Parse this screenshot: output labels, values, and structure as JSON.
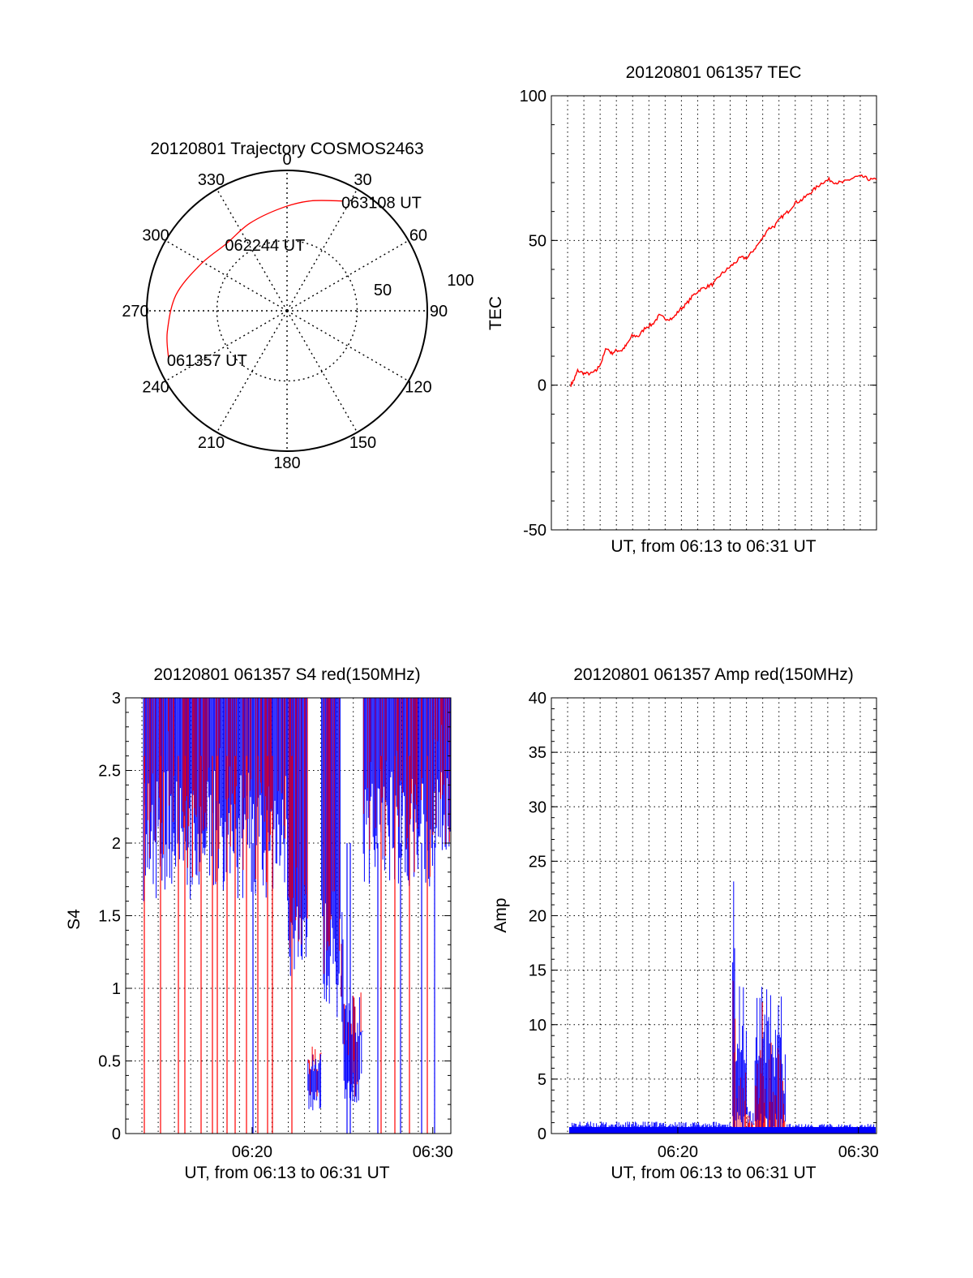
{
  "colors": {
    "red": "#ff0000",
    "blue": "#0000ff",
    "axis": "#000000"
  },
  "chart_data": [
    {
      "type": "polar",
      "title": "20120801 Trajectory COSMOS2463",
      "azimuth_labels": [
        "0",
        "30",
        "60",
        "90",
        "120",
        "150",
        "180",
        "210",
        "240",
        "270",
        "300",
        "330"
      ],
      "azimuths": [
        0,
        30,
        60,
        90,
        120,
        150,
        180,
        210,
        240,
        270,
        300,
        330
      ],
      "radial_labels": [
        "50",
        "100"
      ],
      "trajectory": {
        "color": "#ff0000",
        "points": [
          {
            "az": 248,
            "zen": 82,
            "label": "061357 UT"
          },
          {
            "az": 260,
            "zen": 78
          },
          {
            "az": 278,
            "zen": 72
          },
          {
            "az": 298,
            "zen": 63
          },
          {
            "az": 318,
            "zen": 58,
            "label": "062244 UT"
          },
          {
            "az": 337,
            "zen": 61
          },
          {
            "az": 357,
            "zen": 66
          },
          {
            "az": 12,
            "zen": 72
          },
          {
            "az": 27,
            "zen": 79,
            "label": "063108 UT"
          }
        ]
      }
    },
    {
      "type": "line",
      "title": "20120801 061357 TEC",
      "xlabel": "UT, from 06:13 to 06:31 UT",
      "ylabel": "TEC",
      "xlim": [
        0,
        18
      ],
      "ylim": [
        -50,
        100
      ],
      "yticks": [
        "-50",
        "0",
        "50",
        "100"
      ],
      "series": [
        {
          "color": "#ff0000",
          "x": [
            0.0,
            0.2,
            0.4,
            0.8,
            1.2,
            1.5,
            1.8,
            2.1,
            2.4,
            2.7,
            3.0,
            3.3,
            3.6,
            4.0,
            4.4,
            4.8,
            5.2,
            5.6,
            6.0,
            6.4,
            6.8,
            7.2,
            7.6,
            8.0,
            8.4,
            8.8,
            9.2,
            9.6,
            10.0,
            10.4,
            10.8,
            11.2,
            11.6,
            12.0,
            12.4,
            12.8,
            13.2,
            13.6,
            14.0,
            14.4,
            14.8,
            15.2,
            15.6,
            16.0,
            16.4,
            16.8,
            17.2,
            17.6,
            18.0
          ],
          "values": [
            0,
            2,
            5,
            4,
            4,
            5,
            8,
            13,
            11,
            12,
            12,
            14,
            17,
            17,
            20,
            21,
            24,
            23,
            23,
            26,
            28,
            31,
            33,
            34,
            35,
            38,
            40,
            42,
            44,
            44,
            47,
            50,
            54,
            55,
            58,
            60,
            63,
            64,
            66,
            68,
            70,
            71,
            70,
            70,
            71,
            72,
            72,
            71,
            71
          ]
        }
      ]
    },
    {
      "type": "line",
      "title": "20120801 061357 S4 red(150MHz)",
      "xlabel": "UT, from 06:13 to 06:31 UT",
      "ylabel": "S4",
      "xlim": [
        "06:13",
        "06:31"
      ],
      "xticks": [
        "06:20",
        "06:30"
      ],
      "ylim": [
        0,
        3
      ],
      "yticks": [
        "0",
        "0.5",
        "1",
        "1.5",
        "2",
        "2.5",
        "3"
      ]
    },
    {
      "type": "line",
      "title": "20120801 061357 Amp red(150MHz)",
      "xlabel": "UT, from 06:13 to 06:31 UT",
      "ylabel": "Amp",
      "xlim": [
        "06:13",
        "06:31"
      ],
      "xticks": [
        "06:20",
        "06:30"
      ],
      "ylim": [
        0,
        40
      ],
      "yticks": [
        "0",
        "5",
        "10",
        "15",
        "20",
        "25",
        "30",
        "35",
        "40"
      ]
    }
  ]
}
